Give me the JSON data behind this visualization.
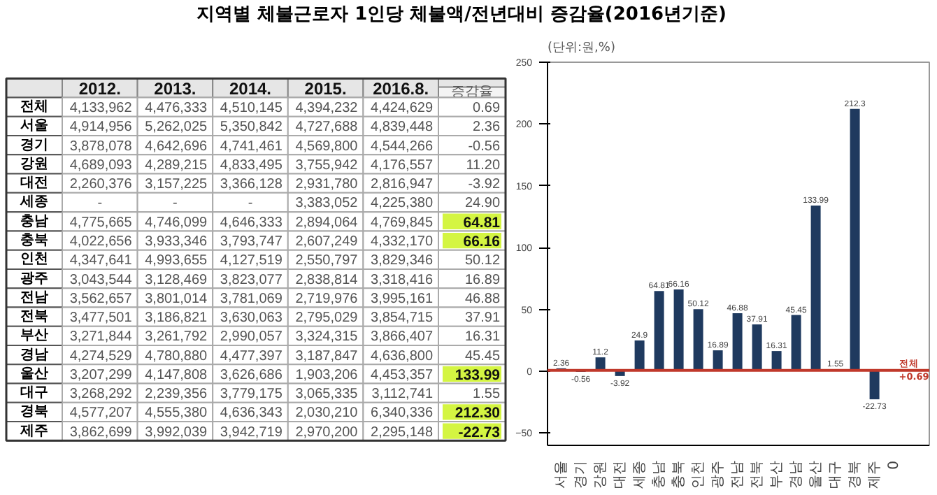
{
  "chart_data": [
    {
      "type": "heatmap",
      "title": "지역별 체불근로자 1인당 체불액/전년대비 증감율(2016년기준)",
      "categories": [
        "2012.",
        "2013.",
        "2014.",
        "2015.",
        "2016.8.",
        "증감율"
      ],
      "y_categories": [
        "전체",
        "서울",
        "경기",
        "강원",
        "대전",
        "세종",
        "충남",
        "충북",
        "인천",
        "광주",
        "전남",
        "전북",
        "부산",
        "경남",
        "울산",
        "대구",
        "경북",
        "제주"
      ],
      "cells": [
        [
          4133962,
          4476333,
          4510145,
          4394232,
          4424629,
          0.69
        ],
        [
          4914956,
          5262025,
          5350842,
          4727688,
          4839448,
          2.36
        ],
        [
          3878078,
          4642696,
          4741461,
          4569800,
          4544266,
          -0.56
        ],
        [
          4689093,
          4289215,
          4833495,
          3755942,
          4176557,
          11.2
        ],
        [
          2260376,
          3157225,
          3366128,
          2931780,
          2816947,
          -3.92
        ],
        [
          null,
          null,
          null,
          3383052,
          4225380,
          24.9
        ],
        [
          4775665,
          4746099,
          4646333,
          2894064,
          4769845,
          64.81
        ],
        [
          4022656,
          3933346,
          3793747,
          2607249,
          4332170,
          66.16
        ],
        [
          4347641,
          4993655,
          4127519,
          2550797,
          3829346,
          50.12
        ],
        [
          3043544,
          3128469,
          3823077,
          2838814,
          3318416,
          16.89
        ],
        [
          3562657,
          3801014,
          3781069,
          2719976,
          3995161,
          46.88
        ],
        [
          3477501,
          3186821,
          3630063,
          2795029,
          3854715,
          37.91
        ],
        [
          3271844,
          3261792,
          2990057,
          3324315,
          3866407,
          16.31
        ],
        [
          4274529,
          4780880,
          4477397,
          3187847,
          4636800,
          45.45
        ],
        [
          3207299,
          4147808,
          3626686,
          1903206,
          4453357,
          133.99
        ],
        [
          3268292,
          2239356,
          3779175,
          3065335,
          3112741,
          1.55
        ],
        [
          4577207,
          4555380,
          4636343,
          2030210,
          6340336,
          212.3
        ],
        [
          3862699,
          3992039,
          3942719,
          2970200,
          2295148,
          -22.73
        ]
      ],
      "cell_labels": [
        [
          "4,133,962",
          "4,476,333",
          "4,510,145",
          "4,394,232",
          "4,424,629",
          "0.69"
        ],
        [
          "4,914,956",
          "5,262,025",
          "5,350,842",
          "4,727,688",
          "4,839,448",
          "2.36"
        ],
        [
          "3,878,078",
          "4,642,696",
          "4,741,461",
          "4,569,800",
          "4,544,266",
          "-0.56"
        ],
        [
          "4,689,093",
          "4,289,215",
          "4,833,495",
          "3,755,942",
          "4,176,557",
          "11.20"
        ],
        [
          "2,260,376",
          "3,157,225",
          "3,366,128",
          "2,931,780",
          "2,816,947",
          "-3.92"
        ],
        [
          "-",
          "-",
          "-",
          "3,383,052",
          "4,225,380",
          "24.90"
        ],
        [
          "4,775,665",
          "4,746,099",
          "4,646,333",
          "2,894,064",
          "4,769,845",
          "64.81"
        ],
        [
          "4,022,656",
          "3,933,346",
          "3,793,747",
          "2,607,249",
          "4,332,170",
          "66.16"
        ],
        [
          "4,347,641",
          "4,993,655",
          "4,127,519",
          "2,550,797",
          "3,829,346",
          "50.12"
        ],
        [
          "3,043,544",
          "3,128,469",
          "3,823,077",
          "2,838,814",
          "3,318,416",
          "16.89"
        ],
        [
          "3,562,657",
          "3,801,014",
          "3,781,069",
          "2,719,976",
          "3,995,161",
          "46.88"
        ],
        [
          "3,477,501",
          "3,186,821",
          "3,630,063",
          "2,795,029",
          "3,854,715",
          "37.91"
        ],
        [
          "3,271,844",
          "3,261,792",
          "2,990,057",
          "3,324,315",
          "3,866,407",
          "16.31"
        ],
        [
          "4,274,529",
          "4,780,880",
          "4,477,397",
          "3,187,847",
          "4,636,800",
          "45.45"
        ],
        [
          "3,207,299",
          "4,147,808",
          "3,626,686",
          "1,903,206",
          "4,453,357",
          "133.99"
        ],
        [
          "3,268,292",
          "2,239,356",
          "3,779,175",
          "3,065,335",
          "3,112,741",
          "1.55"
        ],
        [
          "4,577,207",
          "4,555,380",
          "4,636,343",
          "2,030,210",
          "6,340,336",
          "212.30"
        ],
        [
          "3,862,699",
          "3,992,039",
          "3,942,719",
          "2,970,200",
          "2,295,148",
          "-22.73"
        ]
      ],
      "colors": [
        [
          null,
          null,
          null,
          null,
          null,
          null
        ],
        [
          null,
          null,
          null,
          null,
          null,
          null
        ],
        [
          null,
          null,
          null,
          null,
          null,
          null
        ],
        [
          null,
          null,
          null,
          null,
          null,
          null
        ],
        [
          null,
          null,
          null,
          null,
          null,
          null
        ],
        [
          null,
          null,
          null,
          null,
          null,
          null
        ],
        [
          null,
          null,
          null,
          null,
          null,
          "#d4f542"
        ],
        [
          null,
          null,
          null,
          null,
          null,
          "#d4f542"
        ],
        [
          null,
          null,
          null,
          null,
          null,
          null
        ],
        [
          null,
          null,
          null,
          null,
          null,
          null
        ],
        [
          null,
          null,
          null,
          null,
          null,
          null
        ],
        [
          null,
          null,
          null,
          null,
          null,
          null
        ],
        [
          null,
          null,
          null,
          null,
          null,
          null
        ],
        [
          null,
          null,
          null,
          null,
          null,
          null
        ],
        [
          null,
          null,
          null,
          null,
          null,
          "#d4f542"
        ],
        [
          null,
          null,
          null,
          null,
          null,
          null
        ],
        [
          null,
          null,
          null,
          null,
          null,
          "#d4f542"
        ],
        [
          null,
          null,
          null,
          null,
          null,
          "#d4f542"
        ]
      ]
    },
    {
      "type": "bar",
      "subtitle": "(단위:원,%)",
      "categories": [
        "서울",
        "경기",
        "강원",
        "대전",
        "세종",
        "충남",
        "충북",
        "인천",
        "광주",
        "전남",
        "전북",
        "부산",
        "경남",
        "울산",
        "대구",
        "경북",
        "제주",
        "0"
      ],
      "values": [
        2.36,
        -0.56,
        11.2,
        -3.92,
        24.9,
        64.81,
        66.16,
        50.12,
        16.89,
        46.88,
        37.91,
        16.31,
        45.45,
        133.99,
        1.55,
        212.3,
        -22.73,
        null
      ],
      "color": "#1f3a5f",
      "data_labels": true,
      "ylim": [
        -60,
        250
      ],
      "yticks": [
        -50,
        0,
        50,
        100,
        150,
        200,
        250
      ],
      "grid": false,
      "ref_lines": [
        {
          "axis": "y",
          "value": 0.69,
          "label": "전체\n+0.69",
          "color": "#c0392b"
        }
      ]
    }
  ]
}
